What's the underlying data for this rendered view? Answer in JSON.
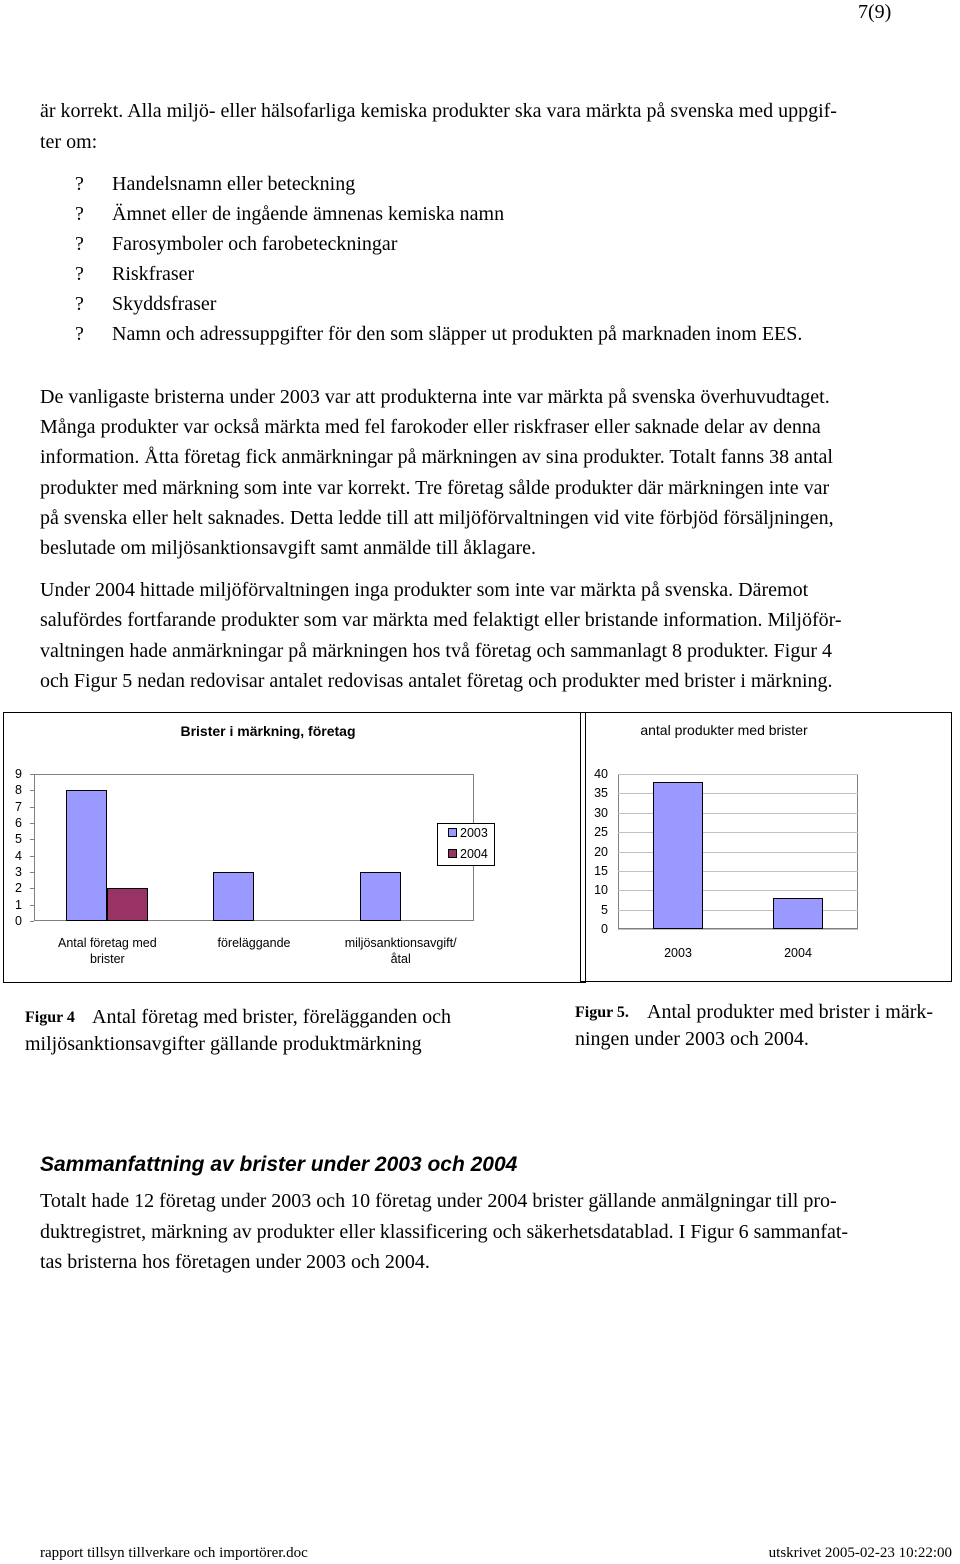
{
  "page_number": "7(9)",
  "intro": {
    "lines": [
      "är korrekt. Alla miljö- eller hälsofarliga kemiska produkter ska vara märkta på svenska med uppgif-",
      "ter om:"
    ]
  },
  "bullet_marker": "?",
  "bullets": [
    "Handelsnamn eller beteckning",
    "Ämnet eller de ingående ämnenas kemiska namn",
    "Farosymboler och farobeteckningar",
    "Riskfraser",
    "Skyddsfraser",
    "Namn och adressuppgifter för den som släpper ut produkten på marknaden inom EES."
  ],
  "paragraph_2003": {
    "lines": [
      "De vanligaste bristerna under 2003 var att produkterna inte var märkta på svenska överhuvudtaget.",
      "Många produkter var också märkta med fel farokoder eller riskfraser eller saknade delar av denna",
      "information. Åtta företag fick anmärkningar på märkningen av sina produkter. Totalt fanns 38 antal",
      "produkter med märkning som inte var korrekt. Tre företag sålde produkter där märkningen inte var",
      "på svenska eller helt saknades. Detta ledde till att miljöförvaltningen vid vite förbjöd försäljningen,",
      "beslutade om miljösanktionsavgift samt anmälde till åklagare."
    ]
  },
  "paragraph_2004": {
    "lines": [
      "Under 2004 hittade miljöförvaltningen inga produkter som inte var märkta på svenska. Däremot",
      "salufördes fortfarande produkter som var märkta med felaktigt eller bristande information. Miljöför-",
      "valtningen hade anmärkningar på märkningen hos två företag och sammanlagt 8 produkter. Figur 4",
      "och Figur 5 nedan redovisar antalet redovisas antalet företag och produkter med brister i märkning."
    ]
  },
  "chart_data": [
    {
      "type": "bar",
      "title": "Brister i märkning, företag",
      "categories": [
        "Antal företag med brister",
        "föreläggande",
        "miljösanktionsavgift/åtal"
      ],
      "series": [
        {
          "name": "2003",
          "color": "#9999ff",
          "values": [
            8,
            3,
            3
          ]
        },
        {
          "name": "2004",
          "color": "#993366",
          "values": [
            2,
            0,
            0
          ]
        }
      ],
      "ylim": [
        0,
        9
      ],
      "yticks": [
        0,
        1,
        2,
        3,
        4,
        5,
        6,
        7,
        8,
        9
      ],
      "grid": false,
      "legend": "right"
    },
    {
      "type": "bar",
      "title": "antal produkter med brister",
      "categories": [
        "2003",
        "2004"
      ],
      "values": [
        38,
        8
      ],
      "color": "#9999ff",
      "ylim": [
        0,
        40
      ],
      "yticks": [
        0,
        5,
        10,
        15,
        20,
        25,
        30,
        35,
        40
      ],
      "grid": true
    }
  ],
  "figure4": {
    "label": "Figur 4",
    "lines": [
      "Antal företag med brister, förelägganden och",
      "miljösanktionsavgifter gällande produktmärkning"
    ]
  },
  "figure5": {
    "label": "Figur 5.",
    "lines": [
      "Antal produkter med brister i märk-",
      "ningen under 2003 och 2004."
    ]
  },
  "summary": {
    "heading": "Sammanfattning av brister under 2003 och 2004",
    "lines": [
      "Totalt hade 12 företag under 2003 och 10 företag under 2004 brister gällande anmälgningar till pro-",
      "duktregistret, märkning av produkter eller klassificering och säkerhetsdatablad. I Figur 6 sammanfat-",
      "tas bristerna hos företagen under 2003 och 2004."
    ]
  },
  "footer": {
    "left": "rapport tillsyn tillverkare och importörer.doc",
    "right": "utskrivet 2005-02-23 10:22:00"
  }
}
